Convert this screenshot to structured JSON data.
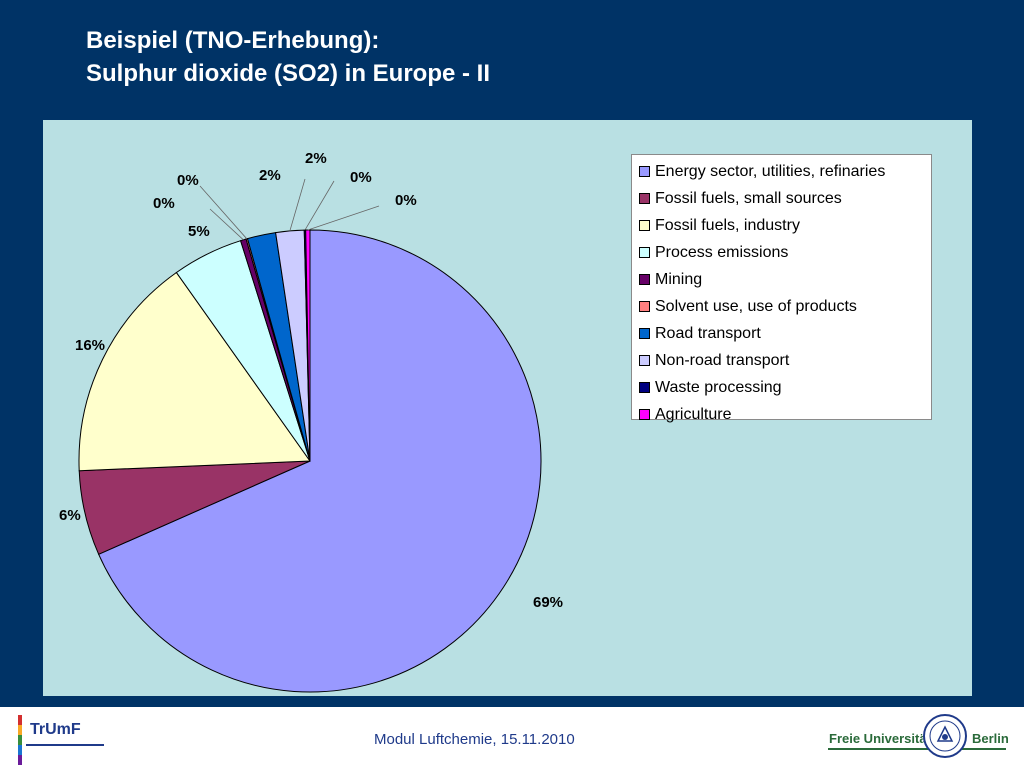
{
  "slide": {
    "title_line1": "Beispiel (TNO-Erhebung):",
    "title_line2": "Sulphur dioxide (SO2) in Europe - II",
    "footer_text": "Modul Luftchemie, 15.11.2010",
    "logo_left": "TrUmF",
    "logo_right_name": "Freie Universität",
    "logo_right_city": "Berlin"
  },
  "chart_data": {
    "type": "pie",
    "title": "",
    "legend_position": "right",
    "categories": [
      "Energy sector, utilities, refinaries",
      "Fossil fuels, small sources",
      "Fossil fuels, industry",
      "Process emissions",
      "Mining",
      "Solvent use, use of products",
      "Road transport",
      "Non-road transport",
      "Waste processing",
      "Agriculture"
    ],
    "values": [
      69,
      6,
      16,
      5,
      0.4,
      0.1,
      2,
      2,
      0.1,
      0.3
    ],
    "labels": [
      "69%",
      "6%",
      "16%",
      "5%",
      "0%",
      "0%",
      "2%",
      "2%",
      "0%",
      "0%"
    ],
    "colors": [
      "#9999ff",
      "#993366",
      "#ffffcc",
      "#ccffff",
      "#660066",
      "#ff8080",
      "#0066cc",
      "#ccccff",
      "#000080",
      "#ff00ff"
    ]
  }
}
